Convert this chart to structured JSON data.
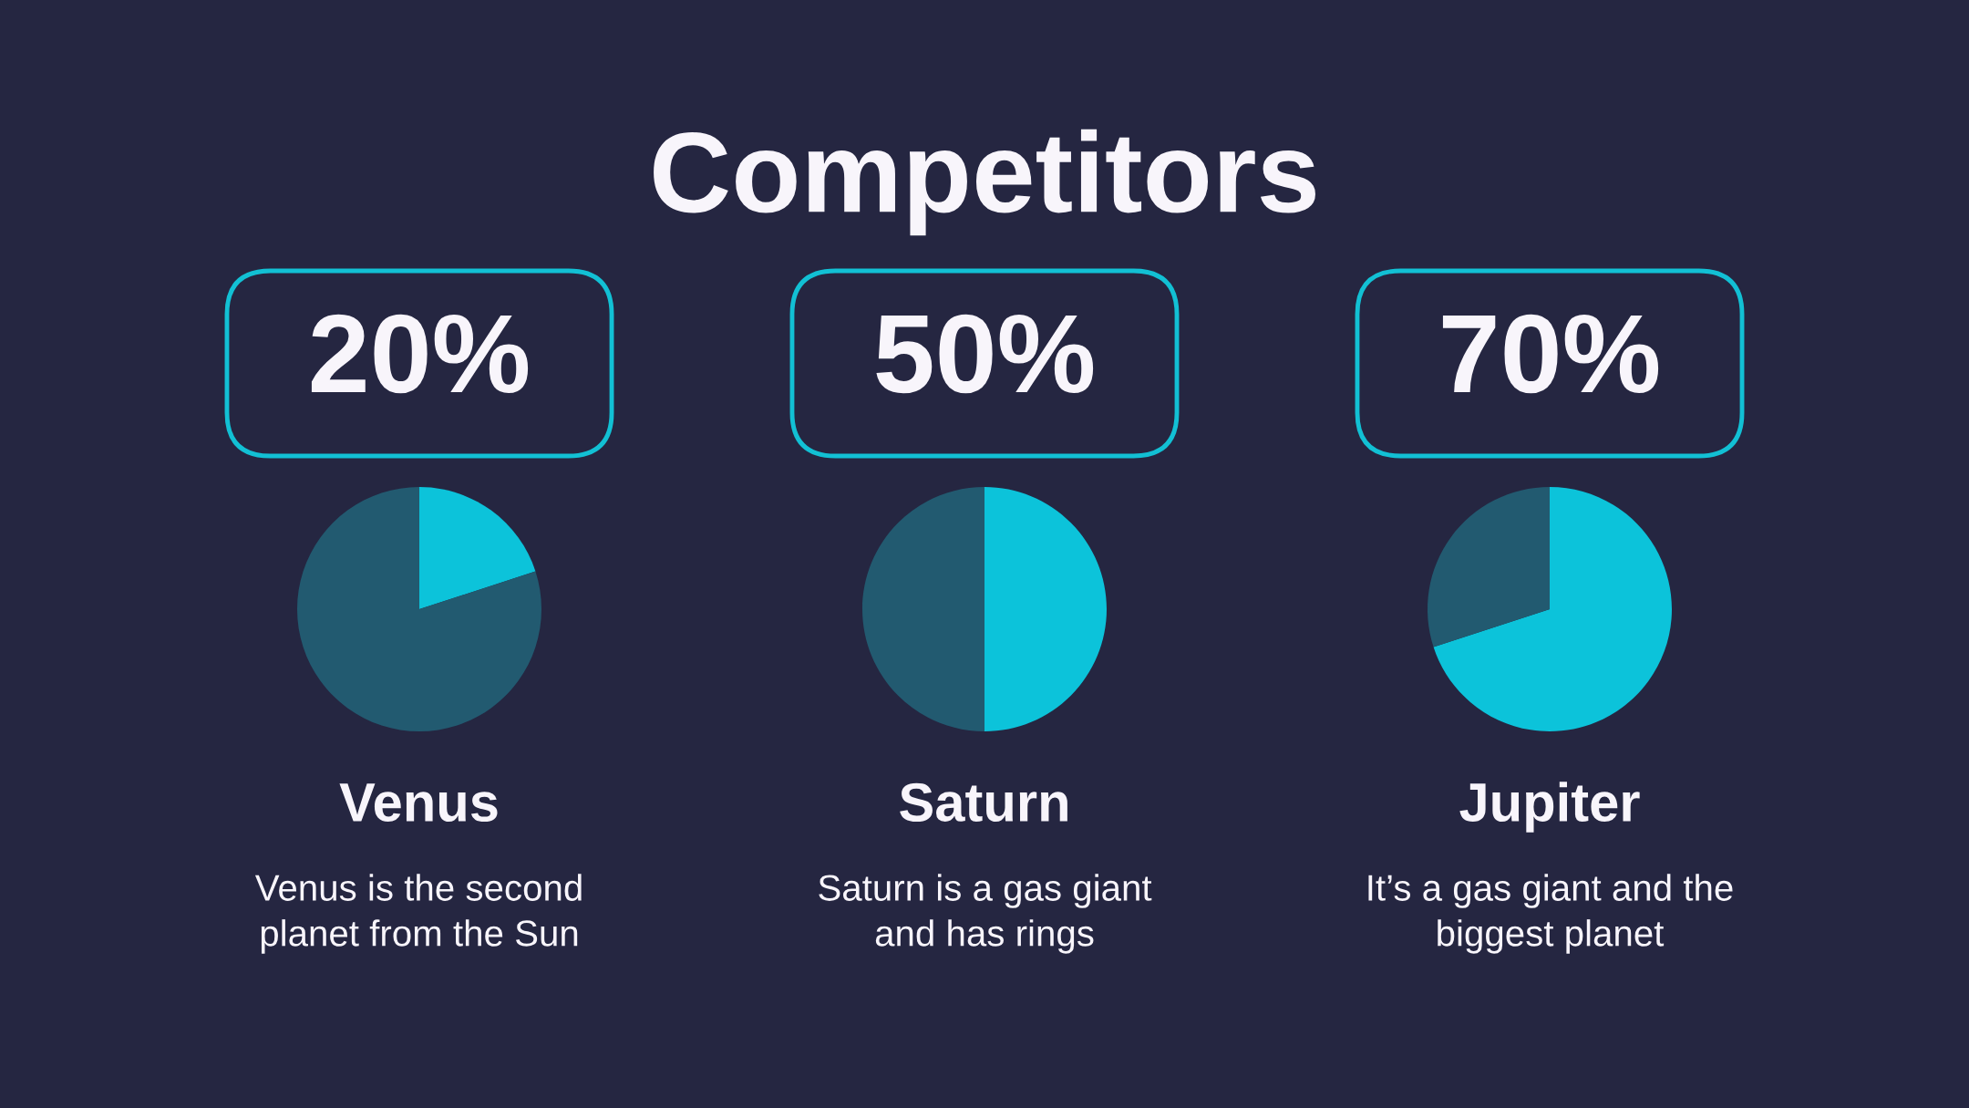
{
  "chart_data": [
    {
      "type": "other",
      "title": "Competitors"
    },
    {
      "type": "pie",
      "title": "Venus",
      "categories": [
        null,
        null
      ],
      "values": [
        20,
        80
      ],
      "colors": [
        "#0cc3da",
        "#225a70"
      ],
      "value_labels": [
        "20%",
        null
      ],
      "annotations": [
        "Venus is the second\nplanet from the Sun"
      ]
    },
    {
      "type": "pie",
      "title": "Saturn",
      "categories": [
        null,
        null
      ],
      "values": [
        50,
        50
      ],
      "colors": [
        "#0cc3da",
        "#225a70"
      ],
      "value_labels": [
        "50%",
        null
      ],
      "annotations": [
        "Saturn is a gas giant\nand has rings"
      ]
    },
    {
      "type": "pie",
      "title": "Jupiter",
      "categories": [
        null,
        null
      ],
      "values": [
        70,
        30
      ],
      "colors": [
        "#0cc3da",
        "#225a70"
      ],
      "value_labels": [
        "70%",
        null
      ],
      "annotations": [
        "It’s a gas giant and the\nbiggest planet"
      ]
    }
  ]
}
